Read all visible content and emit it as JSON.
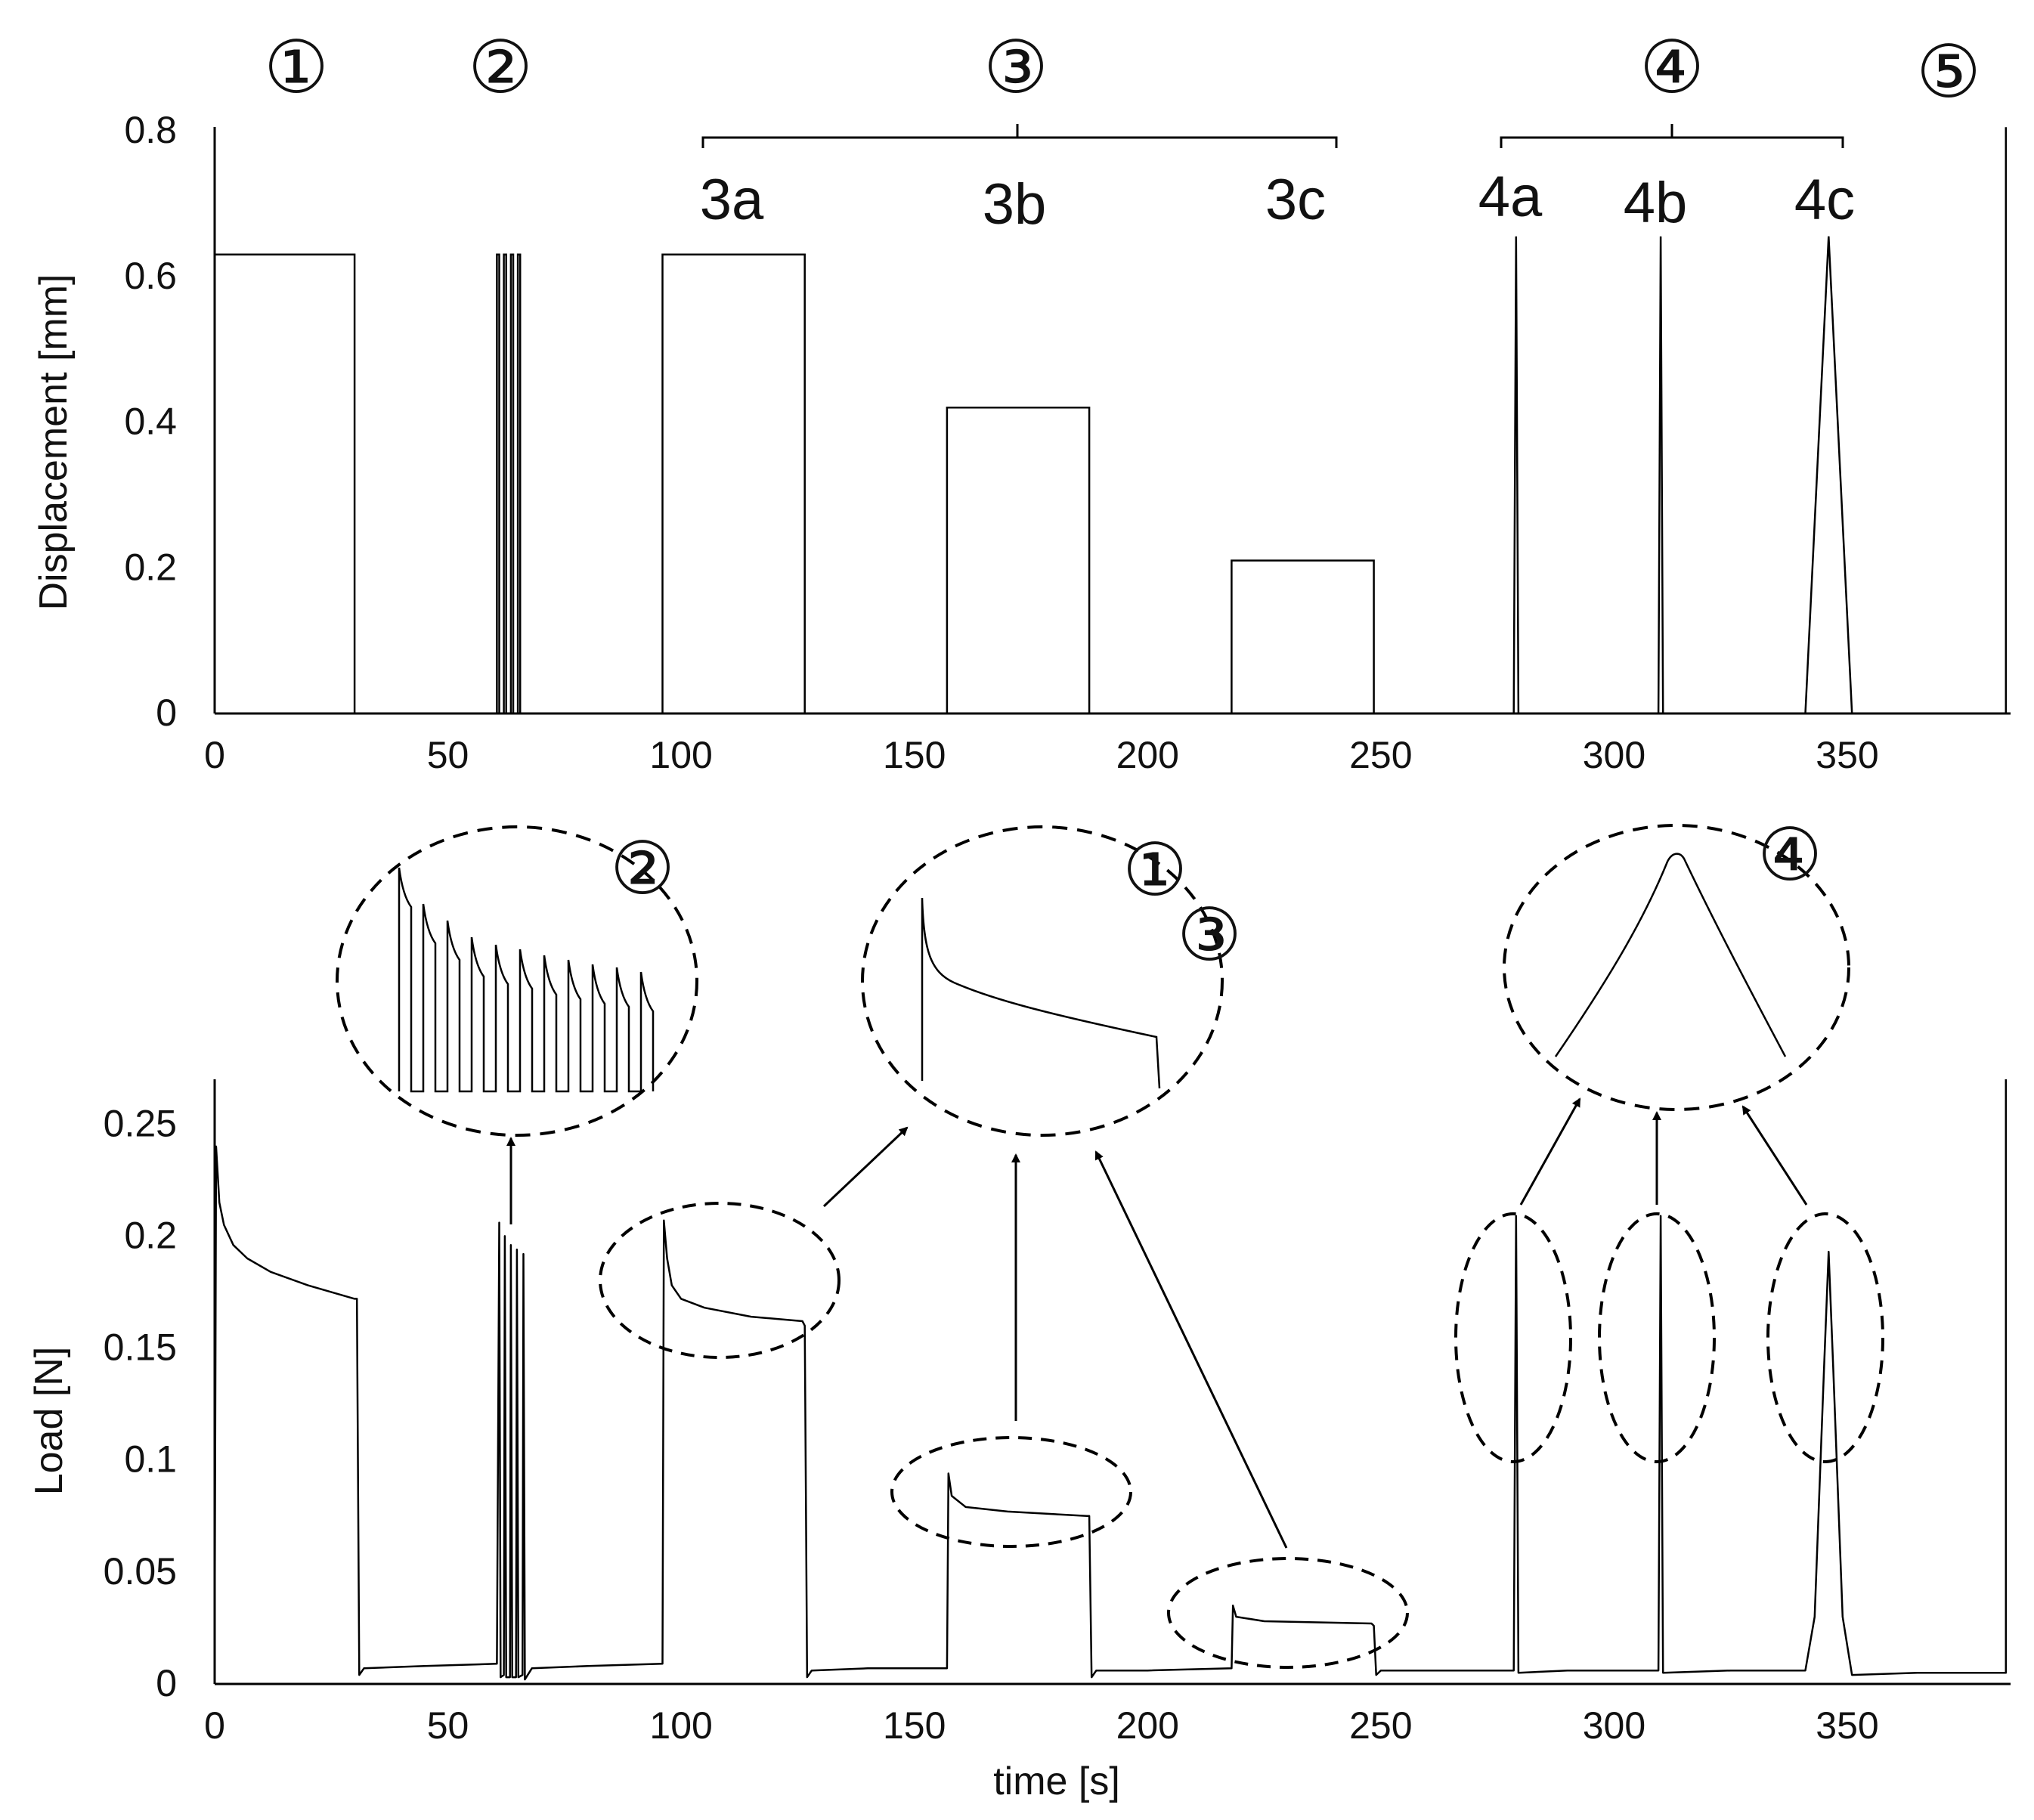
{
  "chart_data": [
    {
      "type": "line",
      "name": "displacement",
      "xlabel": "",
      "ylabel": "Displacement [mm]",
      "xlim": [
        0,
        385
      ],
      "ylim": [
        0,
        0.8
      ],
      "x_ticks": [
        "0",
        "50",
        "100",
        "150",
        "200",
        "250",
        "300",
        "350"
      ],
      "y_ticks": [
        "0",
        "0.2",
        "0.4",
        "0.6",
        "0.8"
      ],
      "series": [
        {
          "name": "displacement",
          "points": [
            [
              0,
              0.63
            ],
            [
              30,
              0.63
            ],
            [
              30,
              0
            ],
            [
              60.5,
              0
            ],
            [
              60.5,
              0.63
            ],
            [
              61,
              0.63
            ],
            [
              61,
              0
            ],
            [
              62,
              0
            ],
            [
              62,
              0.63
            ],
            [
              62.5,
              0.63
            ],
            [
              62.5,
              0
            ],
            [
              63.5,
              0
            ],
            [
              63.5,
              0.63
            ],
            [
              64,
              0.63
            ],
            [
              64,
              0
            ],
            [
              65,
              0
            ],
            [
              65,
              0.63
            ],
            [
              65.5,
              0.63
            ],
            [
              65.5,
              0
            ],
            [
              96,
              0
            ],
            [
              96,
              0.63
            ],
            [
              126.5,
              0.63
            ],
            [
              126.5,
              0
            ],
            [
              157,
              0
            ],
            [
              157,
              0.42
            ],
            [
              187.5,
              0.42
            ],
            [
              187.5,
              0
            ],
            [
              218,
              0
            ],
            [
              218,
              0.21
            ],
            [
              248.5,
              0.21
            ],
            [
              248.5,
              0
            ],
            [
              278.5,
              0
            ],
            [
              279,
              0.655
            ],
            [
              279.5,
              0
            ],
            [
              309.5,
              0
            ],
            [
              310,
              0.655
            ],
            [
              310.5,
              0
            ],
            [
              341,
              0
            ],
            [
              346,
              0.655
            ],
            [
              351,
              0
            ],
            [
              384,
              0
            ],
            [
              384,
              0.805
            ]
          ]
        }
      ],
      "annotations": {
        "phases": [
          {
            "label": "①",
            "x": 18
          },
          {
            "label": "②",
            "x": 62
          },
          {
            "label": "③",
            "x": 174
          },
          {
            "label": "④",
            "x": 315
          },
          {
            "label": "⑤",
            "x": 376
          }
        ],
        "sub_labels": [
          {
            "label": "3a",
            "x": 112
          },
          {
            "label": "3b",
            "x": 173
          },
          {
            "label": "3c",
            "x": 234
          },
          {
            "label": "4a",
            "x": 279
          },
          {
            "label": "4b",
            "x": 310
          },
          {
            "label": "4c",
            "x": 346
          }
        ],
        "brackets": [
          {
            "from": 105,
            "to": 242,
            "center": 174
          },
          {
            "from": 278,
            "to": 352,
            "center": 315
          }
        ]
      }
    },
    {
      "type": "line",
      "name": "load",
      "xlabel": "time [s]",
      "ylabel": "Load [N]",
      "xlim": [
        0,
        385
      ],
      "ylim": [
        0,
        0.27
      ],
      "x_ticks": [
        "0",
        "50",
        "100",
        "150",
        "200",
        "250",
        "300",
        "350"
      ],
      "y_ticks": [
        "0",
        "0.05",
        "0.1",
        "0.15",
        "0.2",
        "0.25"
      ],
      "series": [
        {
          "name": "load",
          "points": [
            [
              0,
              0.02
            ],
            [
              0.3,
              0.24
            ],
            [
              1,
              0.215
            ],
            [
              2,
              0.205
            ],
            [
              4,
              0.196
            ],
            [
              7,
              0.19
            ],
            [
              12,
              0.184
            ],
            [
              20,
              0.178
            ],
            [
              30,
              0.172
            ],
            [
              30.5,
              0.172
            ],
            [
              31,
              0.004
            ],
            [
              32,
              0.007
            ],
            [
              45,
              0.008
            ],
            [
              60.5,
              0.009
            ],
            [
              61,
              0.206
            ],
            [
              61.3,
              0.003
            ],
            [
              62,
              0.004
            ],
            [
              62.2,
              0.2
            ],
            [
              62.5,
              0.003
            ],
            [
              63.3,
              0.003
            ],
            [
              63.5,
              0.196
            ],
            [
              63.8,
              0.003
            ],
            [
              64.6,
              0.003
            ],
            [
              64.8,
              0.194
            ],
            [
              65.1,
              0.003
            ],
            [
              66,
              0.004
            ],
            [
              66.2,
              0.192
            ],
            [
              66.5,
              0.002
            ],
            [
              68,
              0.007
            ],
            [
              80,
              0.008
            ],
            [
              96,
              0.009
            ],
            [
              96.3,
              0.207
            ],
            [
              97,
              0.19
            ],
            [
              98,
              0.178
            ],
            [
              100,
              0.172
            ],
            [
              105,
              0.168
            ],
            [
              115,
              0.164
            ],
            [
              126,
              0.162
            ],
            [
              126.5,
              0.16
            ],
            [
              127,
              0.003
            ],
            [
              128,
              0.006
            ],
            [
              140,
              0.007
            ],
            [
              157,
              0.007
            ],
            [
              157.3,
              0.094
            ],
            [
              158,
              0.084
            ],
            [
              161,
              0.079
            ],
            [
              170,
              0.077
            ],
            [
              187,
              0.075
            ],
            [
              187.5,
              0.075
            ],
            [
              188,
              0.003
            ],
            [
              189,
              0.006
            ],
            [
              200,
              0.006
            ],
            [
              218,
              0.007
            ],
            [
              218.3,
              0.035
            ],
            [
              219,
              0.03
            ],
            [
              225,
              0.028
            ],
            [
              248,
              0.027
            ],
            [
              248.5,
              0.026
            ],
            [
              249,
              0.004
            ],
            [
              250,
              0.006
            ],
            [
              265,
              0.006
            ],
            [
              278.5,
              0.006
            ],
            [
              279,
              0.209
            ],
            [
              279.5,
              0.005
            ],
            [
              290,
              0.006
            ],
            [
              309.5,
              0.006
            ],
            [
              310,
              0.209
            ],
            [
              310.5,
              0.005
            ],
            [
              325,
              0.006
            ],
            [
              341,
              0.006
            ],
            [
              343,
              0.03
            ],
            [
              345,
              0.14
            ],
            [
              346,
              0.193
            ],
            [
              347,
              0.14
            ],
            [
              349,
              0.03
            ],
            [
              351,
              0.004
            ],
            [
              365,
              0.005
            ],
            [
              384,
              0.005
            ],
            [
              384,
              0.27
            ]
          ]
        }
      ],
      "insets": [
        {
          "label": "②",
          "description": "load spikes"
        },
        {
          "label": "①",
          "label2": "③",
          "description": "stress relaxation"
        },
        {
          "label": "④",
          "description": "ramp peak"
        }
      ]
    }
  ]
}
